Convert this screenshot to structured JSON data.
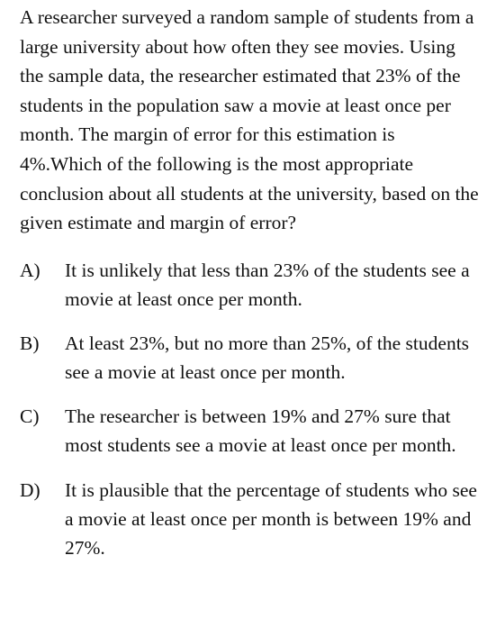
{
  "question": {
    "stem": "A researcher surveyed a random sample of students from a large university about how often they see movies. Using the sample data, the researcher estimated that 23% of the students in the population saw a movie at least once per month. The margin of error for this estimation is 4%.Which of the following is the most appropriate conclusion about all students at the university, based on the given estimate and margin of error?"
  },
  "choices": [
    {
      "letter": "A)",
      "text": "It is unlikely that less than 23% of the students see a movie at least once per month."
    },
    {
      "letter": "B)",
      "text": "At least 23%, but no more than 25%, of the students see a movie at least once per month."
    },
    {
      "letter": "C)",
      "text": "The researcher is between 19% and 27% sure that most students see a movie at least once per month."
    },
    {
      "letter": "D)",
      "text": "It is plausible that the percentage of students who see a movie at least once per month is between 19% and 27%."
    }
  ]
}
